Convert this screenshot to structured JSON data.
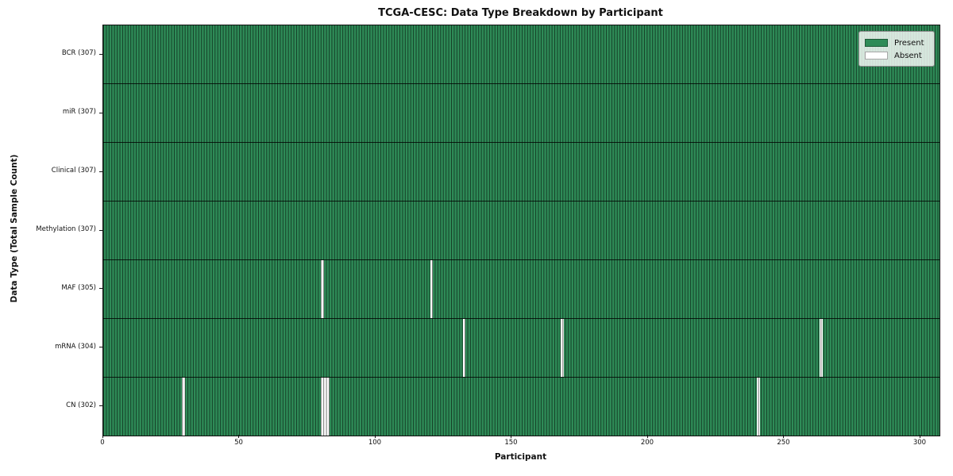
{
  "chart_data": {
    "type": "heatmap",
    "title": "TCGA-CESC: Data Type Breakdown by Participant",
    "xlabel": "Participant",
    "ylabel": "Data Type (Total Sample Count)",
    "x_ticks": [
      0,
      50,
      100,
      150,
      200,
      250,
      300
    ],
    "x_range": [
      0,
      307
    ],
    "n_participants": 307,
    "rows": [
      {
        "data_type": "BCR",
        "total_sample_count": 307,
        "tick_label": "BCR (307)",
        "absent_participant_indices": []
      },
      {
        "data_type": "miR",
        "total_sample_count": 307,
        "tick_label": "miR (307)",
        "absent_participant_indices": []
      },
      {
        "data_type": "Clinical",
        "total_sample_count": 307,
        "tick_label": "Clinical (307)",
        "absent_participant_indices": []
      },
      {
        "data_type": "Methylation",
        "total_sample_count": 307,
        "tick_label": "Methylation (307)",
        "absent_participant_indices": []
      },
      {
        "data_type": "MAF",
        "total_sample_count": 305,
        "tick_label": "MAF (305)",
        "absent_participant_indices": [
          80,
          120
        ]
      },
      {
        "data_type": "mRNA",
        "total_sample_count": 304,
        "tick_label": "mRNA (304)",
        "absent_participant_indices": [
          132,
          168,
          263
        ]
      },
      {
        "data_type": "CN",
        "total_sample_count": 302,
        "tick_label": "CN (302)",
        "absent_participant_indices": [
          29,
          80,
          81,
          82,
          240
        ]
      }
    ],
    "legend": {
      "position": "upper-right",
      "entries": [
        {
          "label": "Present",
          "color": "#2e8b57"
        },
        {
          "label": "Absent",
          "color": "#ffffff"
        }
      ]
    },
    "colors": {
      "present": "#2e8b57",
      "absent": "#ffffff",
      "cell_edge": "rgba(0,0,0,0.55)",
      "row_separator": "rgba(0,0,0,0.8)",
      "plot_border": "#111111"
    },
    "grid": "cell-edges"
  }
}
